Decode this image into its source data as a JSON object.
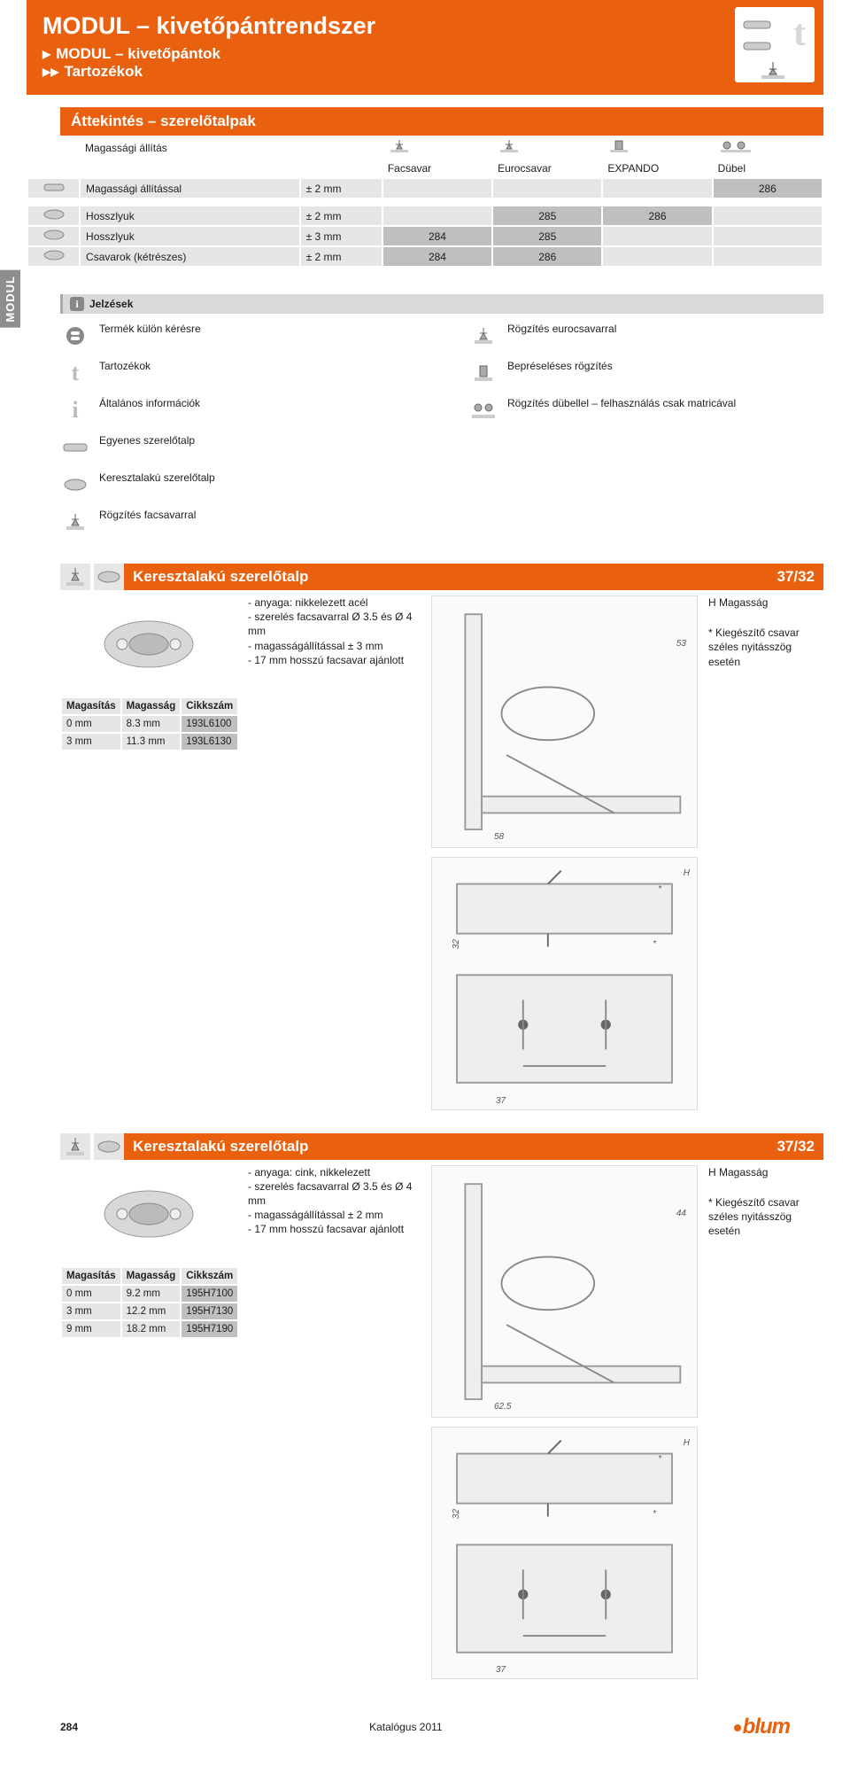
{
  "header": {
    "title": "MODUL – kivetőpántrendszer",
    "sub1": "MODUL – kivetőpántok",
    "sub2": "Tartozékok"
  },
  "side_tab": "MODUL",
  "overview": {
    "title": "Áttekintés – szerelőtalpak",
    "adjust_label": "Magassági állítás",
    "cols": [
      "Facsavar",
      "Eurocsavar",
      "EXPANDO",
      "Dübel"
    ],
    "rows": [
      {
        "label": "Magassági állítással",
        "spec": "± 2 mm",
        "pages": [
          "",
          "",
          "",
          "286"
        ]
      },
      {
        "label": "Hosszlyuk",
        "spec": "± 2 mm",
        "pages": [
          "",
          "285",
          "286",
          ""
        ]
      },
      {
        "label": "Hosszlyuk",
        "spec": "± 3 mm",
        "pages": [
          "284",
          "285",
          "",
          ""
        ]
      },
      {
        "label": "Csavarok (kétrészes)",
        "spec": "± 2 mm",
        "pages": [
          "284",
          "286",
          "",
          ""
        ]
      }
    ]
  },
  "legend": {
    "title": "Jelzések",
    "left": [
      "Termék külön kérésre",
      "Tartozékok",
      "Általános információk",
      "Egyenes szerelőtalp",
      "Keresztalakú szerelőtalp",
      "Rögzítés facsavarral"
    ],
    "right": [
      "Rögzítés eurocsavarral",
      "Bepréseléses rögzítés",
      "Rögzítés dübellel – felhasználás csak matricával"
    ]
  },
  "products": [
    {
      "title": "Keresztalakú szerelőtalp",
      "ratio": "37/32",
      "bullets": [
        "anyaga: nikkelezett acél",
        "szerelés facsavarral Ø 3.5 és Ø 4 mm",
        "magasságállítással ± 3 mm",
        "17 mm hosszú facsavar ajánlott"
      ],
      "table": {
        "headers": [
          "Magasítás",
          "Magasság",
          "Cikkszám"
        ],
        "rows": [
          [
            "0 mm",
            "8.3 mm",
            "193L6100"
          ],
          [
            "3 mm",
            "11.3 mm",
            "193L6130"
          ]
        ]
      },
      "diag": {
        "d1": "53",
        "d2": "58",
        "d3": "32",
        "d4": "37",
        "H": "H"
      },
      "notes": {
        "h": "H Magasság",
        "star": "* Kiegészítő csavar széles nyitásszög esetén"
      }
    },
    {
      "title": "Keresztalakú szerelőtalp",
      "ratio": "37/32",
      "bullets": [
        "anyaga: cink, nikkelezett",
        "szerelés facsavarral Ø 3.5 és Ø 4 mm",
        "magasságállítással ± 2 mm",
        "17 mm hosszú facsavar ajánlott"
      ],
      "table": {
        "headers": [
          "Magasítás",
          "Magasság",
          "Cikkszám"
        ],
        "rows": [
          [
            "0 mm",
            "9.2 mm",
            "195H7100"
          ],
          [
            "3 mm",
            "12.2 mm",
            "195H7130"
          ],
          [
            "9 mm",
            "18.2 mm",
            "195H7190"
          ]
        ]
      },
      "diag": {
        "d1": "44",
        "d2": "62.5",
        "d3": "32",
        "d4": "37",
        "H": "H"
      },
      "notes": {
        "h": "H Magasság",
        "star": "* Kiegészítő csavar széles nyitásszög esetén"
      }
    }
  ],
  "footer": {
    "page": "284",
    "catalog": "Katalógus 2011",
    "brand": "blum"
  },
  "colors": {
    "orange": "#e9600f",
    "grey": "#e6e6e6",
    "darkgrey": "#bfbfbf"
  }
}
